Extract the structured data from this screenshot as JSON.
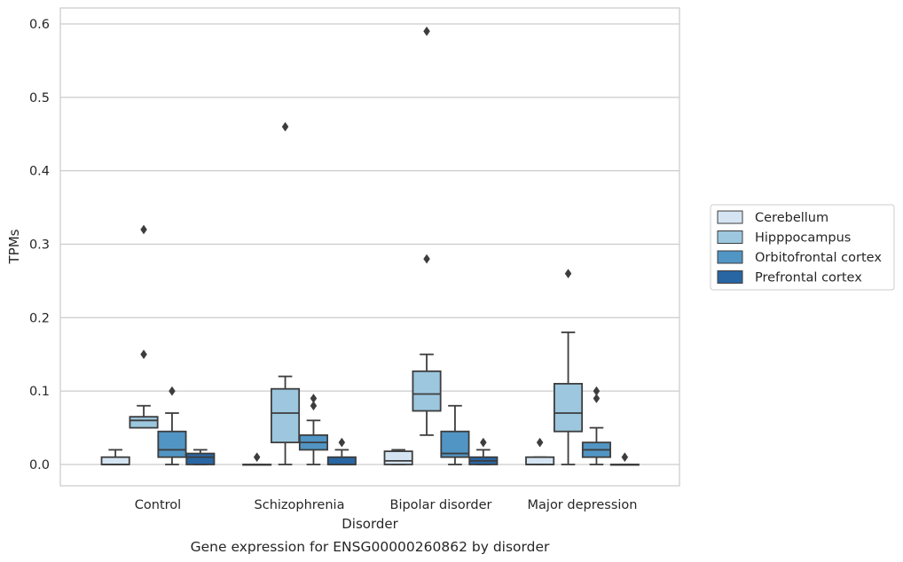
{
  "chart_data": {
    "type": "boxplot",
    "caption": "Gene expression for ENSG00000260862 by disorder",
    "xlabel": "Disorder",
    "ylabel": "TPMs",
    "ylim": [
      -0.029,
      0.62
    ],
    "yticks": [
      "0.0",
      "0.1",
      "0.2",
      "0.3",
      "0.4",
      "0.5",
      "0.6"
    ],
    "grid": "horizontal",
    "legend_position": "right",
    "categories": [
      "Control",
      "Schizophrenia",
      "Bipolar disorder",
      "Major depression"
    ],
    "series": [
      {
        "name": "Cerebellum",
        "color": "#d4e4f2",
        "boxes": [
          {
            "q1": 0.0,
            "median": 0.0,
            "q3": 0.01,
            "whislo": 0.0,
            "whishi": 0.02,
            "fliers": []
          },
          {
            "q1": 0.0,
            "median": 0.0,
            "q3": 0.0,
            "whislo": 0.0,
            "whishi": 0.0,
            "fliers": [
              0.01
            ]
          },
          {
            "q1": 0.0,
            "median": 0.005,
            "q3": 0.018,
            "whislo": 0.0,
            "whishi": 0.02,
            "fliers": []
          },
          {
            "q1": 0.0,
            "median": 0.0,
            "q3": 0.01,
            "whislo": 0.0,
            "whishi": 0.01,
            "fliers": [
              0.03
            ]
          }
        ]
      },
      {
        "name": "Hipppocampus",
        "color": "#9cc7df",
        "boxes": [
          {
            "q1": 0.05,
            "median": 0.06,
            "q3": 0.065,
            "whislo": 0.05,
            "whishi": 0.08,
            "fliers": [
              0.32,
              0.15
            ]
          },
          {
            "q1": 0.03,
            "median": 0.07,
            "q3": 0.103,
            "whislo": 0.0,
            "whishi": 0.12,
            "fliers": [
              0.46
            ]
          },
          {
            "q1": 0.073,
            "median": 0.096,
            "q3": 0.127,
            "whislo": 0.04,
            "whishi": 0.15,
            "fliers": [
              0.59,
              0.28
            ]
          },
          {
            "q1": 0.045,
            "median": 0.07,
            "q3": 0.11,
            "whislo": 0.0,
            "whishi": 0.18,
            "fliers": [
              0.26
            ]
          }
        ]
      },
      {
        "name": "Orbitofrontal cortex",
        "color": "#5195c4",
        "boxes": [
          {
            "q1": 0.01,
            "median": 0.02,
            "q3": 0.045,
            "whislo": 0.0,
            "whishi": 0.07,
            "fliers": [
              0.1
            ]
          },
          {
            "q1": 0.02,
            "median": 0.03,
            "q3": 0.04,
            "whislo": 0.0,
            "whishi": 0.06,
            "fliers": [
              0.09,
              0.08
            ]
          },
          {
            "q1": 0.01,
            "median": 0.015,
            "q3": 0.045,
            "whislo": 0.0,
            "whishi": 0.08,
            "fliers": []
          },
          {
            "q1": 0.01,
            "median": 0.02,
            "q3": 0.03,
            "whislo": 0.0,
            "whishi": 0.05,
            "fliers": [
              0.1,
              0.09
            ]
          }
        ]
      },
      {
        "name": "Prefrontal cortex",
        "color": "#2866a3",
        "boxes": [
          {
            "q1": 0.0,
            "median": 0.01,
            "q3": 0.015,
            "whislo": 0.0,
            "whishi": 0.02,
            "fliers": []
          },
          {
            "q1": 0.0,
            "median": 0.0,
            "q3": 0.01,
            "whislo": 0.0,
            "whishi": 0.02,
            "fliers": [
              0.03
            ]
          },
          {
            "q1": 0.0,
            "median": 0.005,
            "q3": 0.01,
            "whislo": 0.0,
            "whishi": 0.02,
            "fliers": [
              0.03
            ]
          },
          {
            "q1": 0.0,
            "median": 0.0,
            "q3": 0.0,
            "whislo": 0.0,
            "whishi": 0.0,
            "fliers": [
              0.01
            ]
          }
        ]
      }
    ]
  }
}
